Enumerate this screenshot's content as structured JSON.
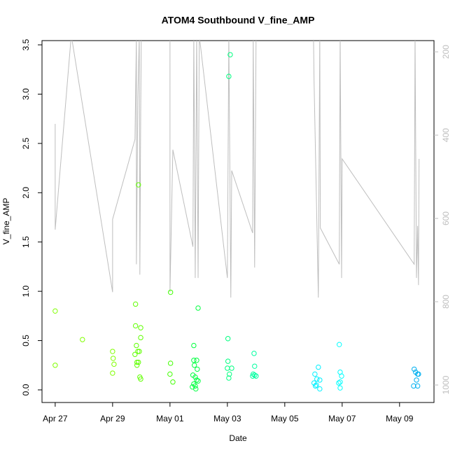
{
  "chart_data": {
    "type": "scatter",
    "title": "ATOM4 Southbound V_fine_AMP",
    "x_label": "Date",
    "y_label": "V_fine_AMP",
    "xlim": [
      -0.46,
      13.2
    ],
    "xticks": [
      {
        "value": 0,
        "label": "Apr 27"
      },
      {
        "value": 2,
        "label": "Apr 29"
      },
      {
        "value": 4,
        "label": "May 01"
      },
      {
        "value": 6,
        "label": "May 03"
      },
      {
        "value": 8,
        "label": "May 05"
      },
      {
        "value": 10,
        "label": "May 07"
      },
      {
        "value": 12,
        "label": "May 09"
      }
    ],
    "ylim": [
      -0.128,
      3.543
    ],
    "yticks": [
      {
        "value": 0,
        "label": "0.0"
      },
      0.5,
      {
        "value": 1,
        "label": "1.0"
      },
      1.5,
      {
        "value": 2,
        "label": "2.0"
      },
      2.5,
      {
        "value": 3,
        "label": "3.0"
      },
      3.5
    ],
    "y2lim": [
      1042,
      173
    ],
    "y2ticks": [
      200,
      400,
      600,
      800,
      1000
    ],
    "series": [
      {
        "type": "line",
        "axis": "y2",
        "color": "#bebebe",
        "x": [
          0,
          0,
          0.56,
          2.0,
          2.0,
          2.78,
          2.83,
          2.83,
          2.88,
          2.93,
          2.95,
          2.98,
          3.0,
          4.0,
          4.0,
          4.1,
          4.8,
          4.83,
          4.88,
          4.93,
          4.98,
          5.02,
          6.0,
          6.05,
          6.12,
          6.15,
          6.88,
          6.9,
          6.95,
          7.0,
          9.0,
          9.02,
          9.17,
          9.22,
          9.24,
          9.9,
          9.93,
          9.98,
          10.0,
          12.51,
          12.54,
          12.59,
          12.63,
          12.66,
          12.68
        ],
        "values": [
          373,
          627,
          160,
          777,
          602,
          410,
          160,
          710,
          310,
          160,
          735,
          343,
          160,
          160,
          777,
          435,
          668,
          160,
          743,
          160,
          743,
          160,
          743,
          160,
          790,
          485,
          635,
          160,
          718,
          160,
          160,
          268,
          790,
          160,
          623,
          710,
          160,
          743,
          457,
          710,
          160,
          743,
          618,
          760,
          457
        ]
      },
      {
        "type": "scatter",
        "x": [
          0,
          0,
          0.95,
          2.0,
          2.02,
          2.05,
          2.0,
          2.8,
          2.8,
          2.83,
          2.88,
          2.78,
          2.93,
          2.85,
          2.9,
          2.85,
          2.98,
          2.98,
          2.9,
          2.95,
          2.98,
          4.02,
          4.02,
          4.0,
          4.1,
          4.98,
          4.83,
          4.83,
          4.93,
          4.85,
          4.95,
          4.8,
          4.88,
          4.93,
          4.83,
          4.88,
          4.78,
          4.9,
          4.98,
          6.1,
          6.05,
          6.02,
          6.02,
          6.0,
          6.15,
          6.07,
          6.05,
          6.93,
          6.95,
          6.9,
          6.95,
          7.0,
          6.88,
          9.17,
          9.05,
          9.12,
          9.22,
          9.02,
          9.1,
          9.07,
          9.22,
          9.9,
          9.93,
          9.98,
          9.93,
          9.88,
          9.93,
          12.51,
          12.56,
          12.63,
          12.59,
          12.66,
          12.49,
          12.63
        ],
        "values": [
          0.8,
          0.25,
          0.51,
          0.39,
          0.32,
          0.26,
          0.17,
          0.87,
          0.65,
          0.45,
          0.39,
          0.36,
          0.39,
          0.28,
          0.28,
          0.25,
          0.63,
          0.53,
          2.08,
          0.13,
          0.11,
          0.99,
          0.27,
          0.16,
          0.08,
          0.83,
          0.45,
          0.3,
          0.3,
          0.25,
          0.21,
          0.15,
          0.13,
          0.1,
          0.06,
          0.04,
          0.03,
          0.01,
          0.09,
          3.4,
          3.18,
          0.52,
          0.29,
          0.22,
          0.22,
          0.16,
          0.12,
          0.37,
          0.24,
          0.16,
          0.15,
          0.14,
          0.14,
          0.23,
          0.16,
          0.11,
          0.1,
          0.07,
          0.05,
          0.04,
          0.01,
          0.46,
          0.18,
          0.14,
          0.08,
          0.07,
          0.02,
          0.21,
          0.18,
          0.16,
          0.1,
          0.16,
          0.04,
          0.04
        ],
        "colors": [
          "#80ff00",
          "#80ff00",
          "#80ff00",
          "#80ff00",
          "#80ff00",
          "#80ff00",
          "#80ff00",
          "#5fff00",
          "#5fff00",
          "#5fff00",
          "#5fff00",
          "#5fff00",
          "#5fff00",
          "#5fff00",
          "#5fff00",
          "#5fff00",
          "#5fff00",
          "#5fff00",
          "#5fff00",
          "#5fff00",
          "#5fff00",
          "#40ff00",
          "#40ff00",
          "#40ff00",
          "#40ff00",
          "#00ff40",
          "#00ff40",
          "#00ff40",
          "#00ff40",
          "#00ff40",
          "#00ff40",
          "#00ff40",
          "#00ff40",
          "#00ff40",
          "#00ff40",
          "#00ff40",
          "#00ff40",
          "#00ff40",
          "#00ff40",
          "#00ff80",
          "#00ff80",
          "#00ff80",
          "#00ff80",
          "#00ff80",
          "#00ff80",
          "#00ff80",
          "#00ff80",
          "#00ffa0",
          "#00ffa0",
          "#00ffa0",
          "#00ffa0",
          "#00ffa0",
          "#00ffa0",
          "#00f0ff",
          "#00f0ff",
          "#00f0ff",
          "#00f0ff",
          "#00f0ff",
          "#00f0ff",
          "#00f0ff",
          "#00f0ff",
          "#00ffff",
          "#00ffff",
          "#00ffff",
          "#00ffff",
          "#00ffff",
          "#00ffff",
          "#00b0f0",
          "#00b0f0",
          "#00b0f0",
          "#00b0f0",
          "#00b0f0",
          "#00b0f0",
          "#00b0f0"
        ]
      }
    ]
  }
}
